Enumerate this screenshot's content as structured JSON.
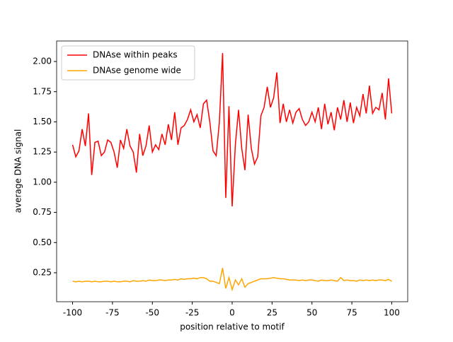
{
  "chart_data": {
    "type": "line",
    "xlabel": "position relative to motif",
    "ylabel": "average DNA signal",
    "x": [
      -100,
      -98,
      -96,
      -94,
      -92,
      -90,
      -88,
      -86,
      -84,
      -82,
      -80,
      -78,
      -76,
      -74,
      -72,
      -70,
      -68,
      -66,
      -64,
      -62,
      -60,
      -58,
      -56,
      -54,
      -52,
      -50,
      -48,
      -46,
      -44,
      -42,
      -40,
      -38,
      -36,
      -34,
      -32,
      -30,
      -28,
      -26,
      -24,
      -22,
      -20,
      -18,
      -16,
      -14,
      -12,
      -10,
      -8,
      -6,
      -4,
      -2,
      0,
      2,
      4,
      6,
      8,
      10,
      12,
      14,
      16,
      18,
      20,
      22,
      24,
      26,
      28,
      30,
      32,
      34,
      36,
      38,
      40,
      42,
      44,
      46,
      48,
      50,
      52,
      54,
      56,
      58,
      60,
      62,
      64,
      66,
      68,
      70,
      72,
      74,
      76,
      78,
      80,
      82,
      84,
      86,
      88,
      90,
      92,
      94,
      96,
      98,
      100
    ],
    "series": [
      {
        "name": "DNAse within peaks",
        "color": "#ff0000",
        "values": [
          1.31,
          1.21,
          1.26,
          1.44,
          1.3,
          1.57,
          1.06,
          1.33,
          1.34,
          1.22,
          1.25,
          1.35,
          1.33,
          1.25,
          1.12,
          1.35,
          1.28,
          1.44,
          1.3,
          1.25,
          1.08,
          1.4,
          1.22,
          1.3,
          1.47,
          1.25,
          1.31,
          1.27,
          1.4,
          1.31,
          1.48,
          1.35,
          1.58,
          1.31,
          1.45,
          1.47,
          1.52,
          1.6,
          1.5,
          1.56,
          1.45,
          1.65,
          1.68,
          1.5,
          1.26,
          1.22,
          1.5,
          2.07,
          0.87,
          1.63,
          0.8,
          1.31,
          1.6,
          1.28,
          1.1,
          1.56,
          1.28,
          1.15,
          1.21,
          1.55,
          1.62,
          1.79,
          1.62,
          1.7,
          1.91,
          1.49,
          1.65,
          1.5,
          1.6,
          1.49,
          1.58,
          1.61,
          1.52,
          1.47,
          1.5,
          1.58,
          1.5,
          1.62,
          1.44,
          1.65,
          1.48,
          1.58,
          1.43,
          1.62,
          1.52,
          1.68,
          1.5,
          1.66,
          1.49,
          1.62,
          1.55,
          1.73,
          1.57,
          1.8,
          1.57,
          1.62,
          1.6,
          1.74,
          1.52,
          1.86,
          1.57
        ]
      },
      {
        "name": "DNAse genome wide",
        "color": "#ffa500",
        "values": [
          0.18,
          0.175,
          0.18,
          0.175,
          0.18,
          0.18,
          0.175,
          0.18,
          0.175,
          0.175,
          0.18,
          0.18,
          0.175,
          0.18,
          0.175,
          0.175,
          0.18,
          0.18,
          0.175,
          0.185,
          0.18,
          0.18,
          0.185,
          0.18,
          0.19,
          0.185,
          0.185,
          0.19,
          0.19,
          0.185,
          0.19,
          0.19,
          0.195,
          0.19,
          0.2,
          0.195,
          0.2,
          0.2,
          0.205,
          0.2,
          0.21,
          0.21,
          0.2,
          0.18,
          0.18,
          0.17,
          0.16,
          0.29,
          0.12,
          0.21,
          0.11,
          0.19,
          0.15,
          0.2,
          0.13,
          0.16,
          0.17,
          0.18,
          0.19,
          0.2,
          0.2,
          0.2,
          0.205,
          0.21,
          0.205,
          0.2,
          0.2,
          0.195,
          0.19,
          0.19,
          0.19,
          0.185,
          0.19,
          0.185,
          0.19,
          0.19,
          0.185,
          0.18,
          0.19,
          0.185,
          0.185,
          0.19,
          0.185,
          0.18,
          0.21,
          0.185,
          0.19,
          0.185,
          0.185,
          0.18,
          0.19,
          0.185,
          0.19,
          0.185,
          0.19,
          0.185,
          0.19,
          0.19,
          0.185,
          0.195,
          0.18
        ]
      }
    ],
    "xlim": [
      -110,
      110
    ],
    "ylim": [
      0.01,
      2.17
    ],
    "xticks": [
      -100,
      -75,
      -50,
      -25,
      0,
      25,
      50,
      75,
      100
    ],
    "yticks": [
      {
        "value": 0.25,
        "label": "0.25"
      },
      {
        "value": 0.5,
        "label": "0.50"
      },
      {
        "value": 0.75,
        "label": "0.75"
      },
      {
        "value": 1,
        "label": "1.00"
      },
      {
        "value": 1.25,
        "label": "1.25"
      },
      {
        "value": 1.5,
        "label": "1.50"
      },
      {
        "value": 1.75,
        "label": "1.75"
      },
      {
        "value": 2,
        "label": "2.00"
      }
    ],
    "legend": "upper left",
    "grid": false
  }
}
